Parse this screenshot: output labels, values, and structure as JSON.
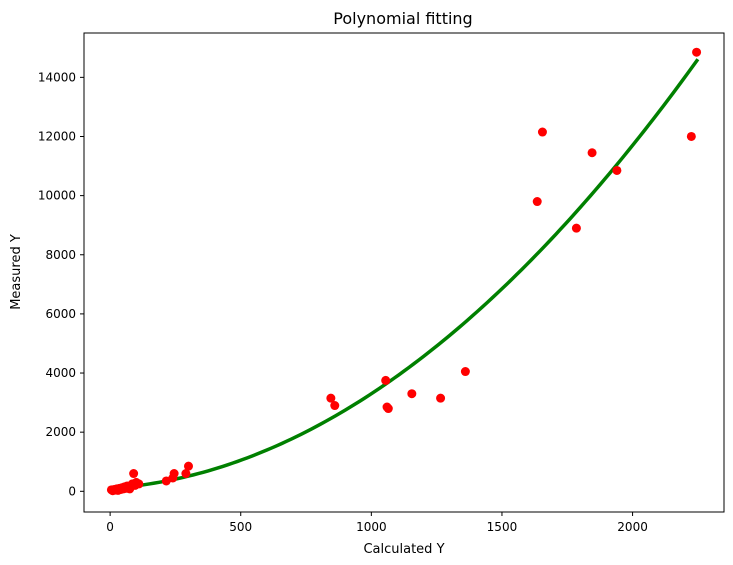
{
  "chart_data": {
    "type": "scatter",
    "title": "Polynomial fitting",
    "xlabel": "Calculated Y",
    "ylabel": "Measured Y",
    "xlim": [
      -100,
      2350
    ],
    "ylim": [
      -700,
      15500
    ],
    "xticks": [
      0,
      500,
      1000,
      1500,
      2000
    ],
    "yticks": [
      0,
      2000,
      4000,
      6000,
      8000,
      10000,
      12000,
      14000
    ],
    "grid": false,
    "scatter_color": "#ff0000",
    "fit_color": "#008000",
    "points": [
      [
        5,
        50
      ],
      [
        10,
        20
      ],
      [
        15,
        60
      ],
      [
        20,
        40
      ],
      [
        25,
        80
      ],
      [
        30,
        30
      ],
      [
        35,
        100
      ],
      [
        40,
        60
      ],
      [
        45,
        120
      ],
      [
        50,
        80
      ],
      [
        55,
        150
      ],
      [
        60,
        100
      ],
      [
        65,
        180
      ],
      [
        75,
        80
      ],
      [
        80,
        200
      ],
      [
        85,
        250
      ],
      [
        90,
        600
      ],
      [
        95,
        200
      ],
      [
        100,
        300
      ],
      [
        110,
        250
      ],
      [
        215,
        350
      ],
      [
        240,
        450
      ],
      [
        245,
        600
      ],
      [
        290,
        600
      ],
      [
        300,
        850
      ],
      [
        845,
        3150
      ],
      [
        860,
        2900
      ],
      [
        1055,
        3750
      ],
      [
        1060,
        2850
      ],
      [
        1065,
        2800
      ],
      [
        1155,
        3300
      ],
      [
        1265,
        3150
      ],
      [
        1360,
        4050
      ],
      [
        1635,
        9800
      ],
      [
        1655,
        12150
      ],
      [
        1785,
        8900
      ],
      [
        1845,
        11450
      ],
      [
        1940,
        10850
      ],
      [
        2225,
        12000
      ],
      [
        2245,
        14850
      ]
    ],
    "fit_line": {
      "x_range": [
        0,
        2250
      ],
      "coefficients": [
        100,
        0.6,
        0.0026
      ]
    }
  }
}
